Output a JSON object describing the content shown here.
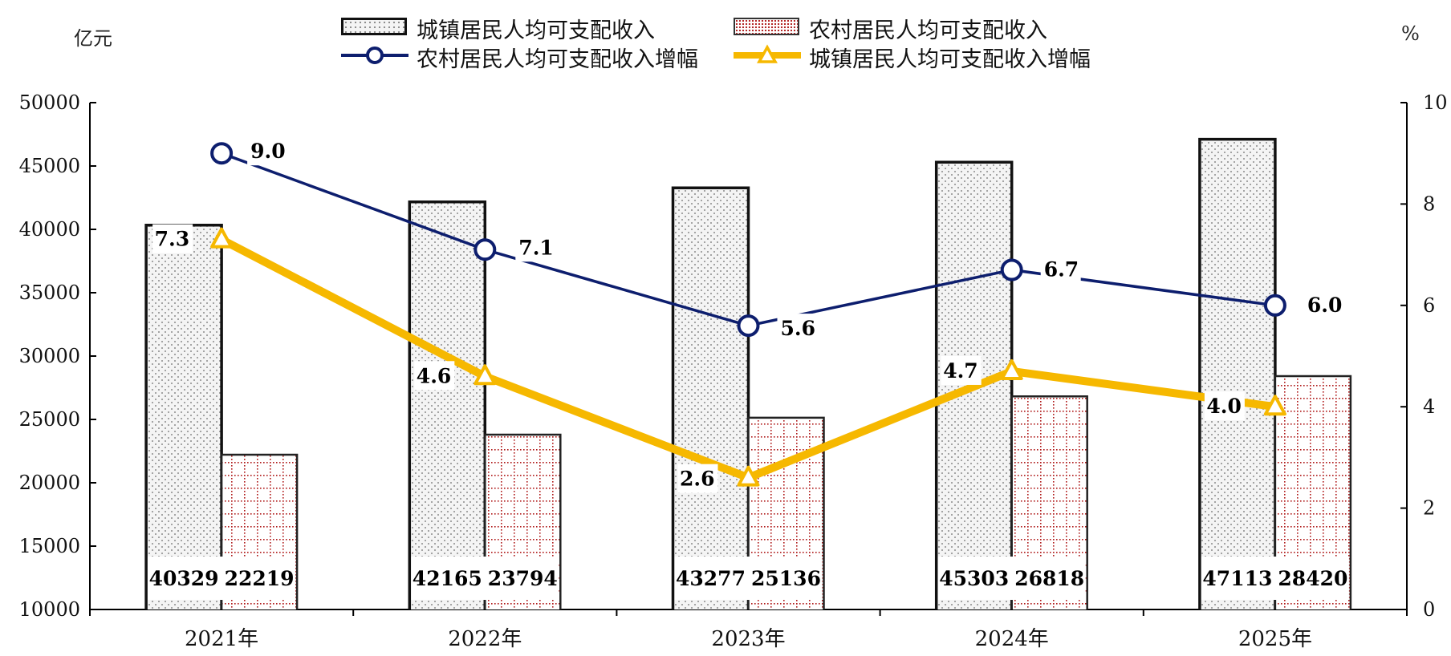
{
  "chart_data": {
    "type": "bar",
    "categories": [
      "2021年",
      "2022年",
      "2023年",
      "2024年",
      "2025年"
    ],
    "y_left": {
      "unit": "亿元",
      "min": 10000,
      "max": 50000,
      "ticks": [
        10000,
        15000,
        20000,
        25000,
        30000,
        35000,
        40000,
        45000,
        50000
      ]
    },
    "y_right": {
      "unit": "%",
      "min": 0,
      "max": 10,
      "ticks": [
        0,
        2,
        4,
        6,
        8,
        10
      ]
    },
    "bar_series": [
      {
        "name": "城镇居民人均可支配收入",
        "values": [
          40329,
          42165,
          43277,
          45303,
          47113
        ],
        "color": "#111111",
        "pattern": "dots"
      },
      {
        "name": "农村居民人均可支配收入",
        "values": [
          22219,
          23794,
          25136,
          26818,
          28420
        ],
        "color": "#b01c1c",
        "pattern": "red-grid"
      }
    ],
    "line_series": [
      {
        "name": "农村居民人均可支配收入增幅",
        "values": [
          9.0,
          7.1,
          5.6,
          6.7,
          6.0
        ],
        "labels": [
          "9.0",
          "7.1",
          "5.6",
          "6.7",
          "6.0"
        ],
        "color": "#0d1e6e",
        "marker": "circle"
      },
      {
        "name": "城镇居民人均可支配收入增幅",
        "values": [
          7.3,
          4.6,
          2.6,
          4.7,
          4.0
        ],
        "labels": [
          "7.3",
          "4.6",
          "2.6",
          "4.7",
          "4.0"
        ],
        "color": "#f6b800",
        "marker": "triangle"
      }
    ],
    "legend_position": "top-center",
    "grid": false
  }
}
